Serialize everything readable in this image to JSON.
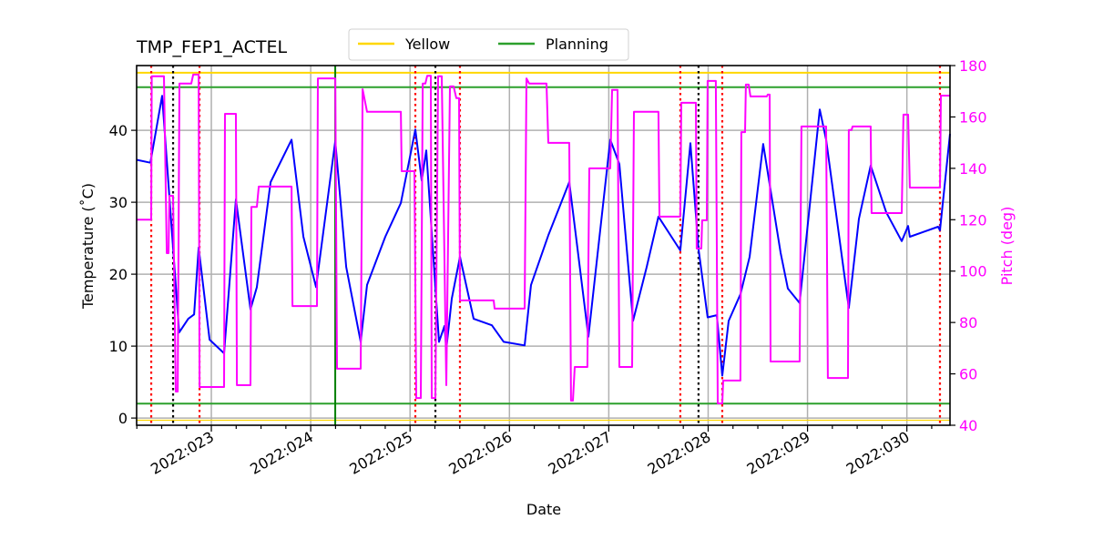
{
  "chart_data": {
    "type": "line",
    "title": "TMP_FEP1_ACTEL",
    "xlabel": "Date",
    "ylabel": "Temperature ($^\\circ$C)",
    "ylabel_display": "Temperature (˚C)",
    "y2label": "Pitch (deg)",
    "xlim": [
      22.248,
      30.434
    ],
    "ylim": [
      -1.0,
      49.0
    ],
    "y2lim": [
      40,
      180
    ],
    "grid": true,
    "legend_placement": "top-center",
    "x_ticks": [
      {
        "value": 23,
        "label": "2022:023"
      },
      {
        "value": 24,
        "label": "2022:024"
      },
      {
        "value": 25,
        "label": "2022:025"
      },
      {
        "value": 26,
        "label": "2022:026"
      },
      {
        "value": 27,
        "label": "2022:027"
      },
      {
        "value": 28,
        "label": "2022:028"
      },
      {
        "value": 29,
        "label": "2022:029"
      },
      {
        "value": 30,
        "label": "2022:030"
      }
    ],
    "x_minor_step": 0.25,
    "y_ticks": [
      0,
      10,
      20,
      30,
      40
    ],
    "y2_ticks": [
      40,
      60,
      80,
      100,
      120,
      140,
      160,
      180
    ],
    "colors": {
      "temperature": "#0000ff",
      "pitch": "#ff00ff",
      "yellow": "#ffd700",
      "planning": "#2ca02c",
      "axis2": "#ff00ff",
      "grid": "#b0b0b0"
    },
    "legend": [
      {
        "label": "Yellow",
        "color": "#ffd700"
      },
      {
        "label": "Planning",
        "color": "#2ca02c"
      }
    ],
    "limit_lines": {
      "yellow": [
        48,
        -0.3
      ],
      "planning": [
        46,
        2
      ]
    },
    "vertical_lines": {
      "red_dotted": [
        22.395,
        22.881,
        25.053,
        25.502,
        27.72,
        28.142,
        30.333
      ],
      "black_dotted": [
        22.615,
        25.255,
        27.903
      ],
      "green_solid": [
        24.247
      ]
    },
    "series": [
      {
        "axis": "left",
        "color": "#0000ff",
        "points": [
          [
            22.248,
            35.9
          ],
          [
            22.386,
            35.5
          ],
          [
            22.505,
            44.8
          ],
          [
            22.676,
            11.9
          ],
          [
            22.768,
            13.8
          ],
          [
            22.826,
            14.4
          ],
          [
            22.872,
            23.7
          ],
          [
            22.982,
            10.9
          ],
          [
            23.128,
            9.0
          ],
          [
            23.247,
            30.4
          ],
          [
            23.394,
            15.1
          ],
          [
            23.458,
            18.2
          ],
          [
            23.596,
            32.8
          ],
          [
            23.807,
            38.7
          ],
          [
            23.926,
            25.2
          ],
          [
            24.054,
            18.2
          ],
          [
            24.247,
            38.5
          ],
          [
            24.357,
            21.0
          ],
          [
            24.503,
            10.6
          ],
          [
            24.567,
            18.5
          ],
          [
            24.751,
            25.2
          ],
          [
            24.907,
            29.9
          ],
          [
            25.053,
            40.1
          ],
          [
            25.117,
            33.0
          ],
          [
            25.163,
            37.2
          ],
          [
            25.291,
            10.6
          ],
          [
            25.346,
            12.8
          ],
          [
            25.365,
            9.6
          ],
          [
            25.42,
            16.6
          ],
          [
            25.502,
            22.4
          ],
          [
            25.64,
            13.8
          ],
          [
            25.823,
            12.9
          ],
          [
            25.942,
            10.6
          ],
          [
            26.153,
            10.1
          ],
          [
            26.217,
            18.5
          ],
          [
            26.391,
            25.4
          ],
          [
            26.602,
            32.8
          ],
          [
            26.795,
            11.3
          ],
          [
            27.015,
            38.7
          ],
          [
            27.106,
            35.3
          ],
          [
            27.244,
            13.5
          ],
          [
            27.381,
            21.0
          ],
          [
            27.5,
            28.0
          ],
          [
            27.72,
            23.3
          ],
          [
            27.821,
            38.2
          ],
          [
            27.903,
            23.5
          ],
          [
            27.995,
            14.0
          ],
          [
            28.087,
            14.3
          ],
          [
            28.142,
            5.9
          ],
          [
            28.206,
            13.5
          ],
          [
            28.325,
            17.2
          ],
          [
            28.417,
            22.4
          ],
          [
            28.554,
            38.1
          ],
          [
            28.729,
            23.0
          ],
          [
            28.802,
            18.0
          ],
          [
            28.921,
            16.0
          ],
          [
            29.123,
            42.9
          ],
          [
            29.187,
            38.7
          ],
          [
            29.416,
            15.3
          ],
          [
            29.517,
            27.7
          ],
          [
            29.636,
            35.1
          ],
          [
            29.792,
            28.6
          ],
          [
            29.948,
            24.6
          ],
          [
            30.012,
            26.7
          ],
          [
            30.03,
            25.2
          ],
          [
            30.314,
            26.6
          ],
          [
            30.333,
            26.1
          ],
          [
            30.434,
            39.5
          ]
        ]
      },
      {
        "axis": "right",
        "color": "#ff00ff",
        "points": [
          [
            22.248,
            120
          ],
          [
            22.395,
            120
          ],
          [
            22.4,
            175.8
          ],
          [
            22.523,
            175.8
          ],
          [
            22.551,
            107
          ],
          [
            22.569,
            107
          ],
          [
            22.578,
            129.3
          ],
          [
            22.615,
            129.3
          ],
          [
            22.642,
            53.1
          ],
          [
            22.661,
            53.1
          ],
          [
            22.679,
            173
          ],
          [
            22.798,
            173
          ],
          [
            22.817,
            176.5
          ],
          [
            22.872,
            176.5
          ],
          [
            22.881,
            54.9
          ],
          [
            23.128,
            54.9
          ],
          [
            23.137,
            161.2
          ],
          [
            23.247,
            161.2
          ],
          [
            23.257,
            55.6
          ],
          [
            23.394,
            55.6
          ],
          [
            23.403,
            125
          ],
          [
            23.458,
            125
          ],
          [
            23.477,
            132.9
          ],
          [
            23.807,
            132.9
          ],
          [
            23.816,
            86.4
          ],
          [
            24.063,
            86.4
          ],
          [
            24.072,
            175
          ],
          [
            24.247,
            175
          ],
          [
            24.265,
            62
          ],
          [
            24.503,
            62
          ],
          [
            24.522,
            170.8
          ],
          [
            24.567,
            162
          ],
          [
            24.907,
            162
          ],
          [
            24.916,
            138.9
          ],
          [
            25.044,
            138.9
          ],
          [
            25.062,
            50.6
          ],
          [
            25.108,
            50.6
          ],
          [
            25.127,
            173
          ],
          [
            25.154,
            173
          ],
          [
            25.172,
            176
          ],
          [
            25.209,
            176
          ],
          [
            25.218,
            50.6
          ],
          [
            25.255,
            50.6
          ],
          [
            25.282,
            175.8
          ],
          [
            25.319,
            175.8
          ],
          [
            25.365,
            55.6
          ],
          [
            25.401,
            171.9
          ],
          [
            25.438,
            171.9
          ],
          [
            25.466,
            167.3
          ],
          [
            25.493,
            167.3
          ],
          [
            25.502,
            88.6
          ],
          [
            25.841,
            88.6
          ],
          [
            25.851,
            85.4
          ],
          [
            26.153,
            85.4
          ],
          [
            26.171,
            175
          ],
          [
            26.199,
            173
          ],
          [
            26.373,
            173
          ],
          [
            26.391,
            149.9
          ],
          [
            26.602,
            149.9
          ],
          [
            26.62,
            49.6
          ],
          [
            26.639,
            49.6
          ],
          [
            26.657,
            62.7
          ],
          [
            26.785,
            62.7
          ],
          [
            26.804,
            140
          ],
          [
            27.015,
            140
          ],
          [
            27.033,
            170.5
          ],
          [
            27.088,
            170.5
          ],
          [
            27.106,
            62.7
          ],
          [
            27.235,
            62.7
          ],
          [
            27.253,
            162
          ],
          [
            27.5,
            162
          ],
          [
            27.51,
            121.2
          ],
          [
            27.72,
            121.2
          ],
          [
            27.73,
            165.5
          ],
          [
            27.876,
            165.5
          ],
          [
            27.885,
            108.8
          ],
          [
            27.931,
            108.8
          ],
          [
            27.94,
            119.8
          ],
          [
            27.986,
            119.8
          ],
          [
            27.995,
            174
          ],
          [
            28.077,
            174
          ],
          [
            28.096,
            48.5
          ],
          [
            28.142,
            48.5
          ],
          [
            28.151,
            57.4
          ],
          [
            28.325,
            57.4
          ],
          [
            28.334,
            154.1
          ],
          [
            28.371,
            154.1
          ],
          [
            28.38,
            172.6
          ],
          [
            28.408,
            172.6
          ],
          [
            28.426,
            168
          ],
          [
            28.591,
            168
          ],
          [
            28.6,
            168.7
          ],
          [
            28.619,
            168.7
          ],
          [
            28.628,
            64.8
          ],
          [
            28.921,
            64.8
          ],
          [
            28.939,
            156.3
          ],
          [
            29.187,
            156.3
          ],
          [
            29.205,
            58.4
          ],
          [
            29.407,
            58.4
          ],
          [
            29.416,
            154.9
          ],
          [
            29.444,
            154.9
          ],
          [
            29.453,
            156.3
          ],
          [
            29.636,
            156.3
          ],
          [
            29.645,
            122.6
          ],
          [
            29.948,
            122.6
          ],
          [
            29.966,
            160.9
          ],
          [
            30.012,
            160.9
          ],
          [
            30.03,
            132.5
          ],
          [
            30.333,
            132.5
          ],
          [
            30.342,
            168.3
          ],
          [
            30.434,
            168.3
          ]
        ]
      }
    ]
  }
}
